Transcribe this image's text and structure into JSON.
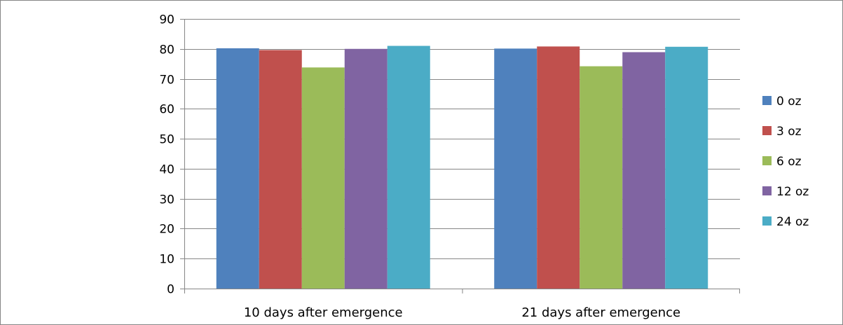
{
  "chart_data": {
    "type": "bar",
    "title": "",
    "xlabel": "",
    "ylabel": "",
    "categories": [
      "10 days after emergence",
      "21 days after emergence"
    ],
    "ylim": [
      0,
      90
    ],
    "yticks": [
      0,
      10,
      20,
      30,
      40,
      50,
      60,
      70,
      80,
      90
    ],
    "grid": true,
    "legend_position": "right",
    "series": [
      {
        "name": "0 oz",
        "color": "#4F81BD",
        "values": [
          80.2,
          80.1
        ]
      },
      {
        "name": "3 oz",
        "color": "#C0504D",
        "values": [
          79.6,
          80.8
        ]
      },
      {
        "name": "6 oz",
        "color": "#9BBB59",
        "values": [
          73.8,
          74.2
        ]
      },
      {
        "name": "12 oz",
        "color": "#8064A2",
        "values": [
          80.0,
          78.9
        ]
      },
      {
        "name": "24 oz",
        "color": "#4BACC6",
        "values": [
          81.0,
          80.7
        ]
      }
    ]
  }
}
